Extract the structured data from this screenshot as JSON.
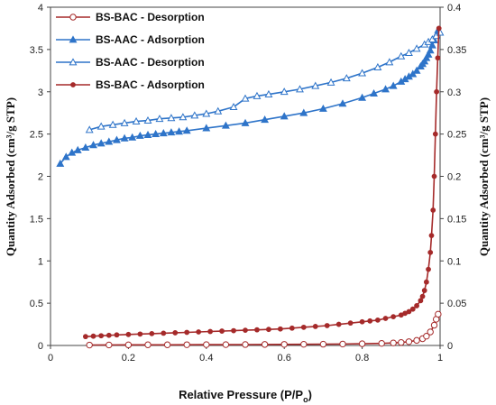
{
  "chart_data": {
    "type": "line",
    "xlabel": "Relative Pressure (P/P",
    "xlabel_sub": "o",
    "xlabel_end": ")",
    "ylabel_left": "Quantity Adsorbed (cm³/g STP)",
    "ylabel_right": "Quantity Adsorbed (cm³/g STP)",
    "xlim": [
      0,
      1
    ],
    "ylim_left": [
      0,
      4
    ],
    "ylim_right": [
      0,
      0.4
    ],
    "x_ticks": [
      "0",
      "0.2",
      "0.4",
      "0.6",
      "0.8",
      "1"
    ],
    "y_left_ticks": [
      "0",
      "0.5",
      "1",
      "1.5",
      "2",
      "2.5",
      "3",
      "3.5",
      "4"
    ],
    "y_right_ticks": [
      "0",
      "0.05",
      "0.1",
      "0.15",
      "0.2",
      "0.25",
      "0.3",
      "0.35",
      "0.4"
    ],
    "legend": [
      "BS-BAC - Desorption",
      "BS-AAC - Adsorption",
      "BS-AAC - Desorption",
      "BS-BAC - Adsorption"
    ],
    "colors": {
      "bac": "#a52a2a",
      "aac": "#2e74c9"
    },
    "series": [
      {
        "name": "BS-BAC - Desorption",
        "axis": "right",
        "color": "#a52a2a",
        "marker": "circle-open",
        "x": [
          0.1,
          0.15,
          0.2,
          0.25,
          0.3,
          0.35,
          0.4,
          0.45,
          0.5,
          0.55,
          0.6,
          0.65,
          0.7,
          0.75,
          0.8,
          0.85,
          0.88,
          0.9,
          0.92,
          0.94,
          0.955,
          0.965,
          0.975,
          0.985,
          0.99,
          0.995
        ],
        "y": [
          0.0005,
          0.0006,
          0.0007,
          0.0008,
          0.0008,
          0.0009,
          0.001,
          0.001,
          0.0011,
          0.0012,
          0.0013,
          0.0014,
          0.0015,
          0.0017,
          0.002,
          0.0025,
          0.003,
          0.0035,
          0.0045,
          0.006,
          0.008,
          0.011,
          0.016,
          0.024,
          0.031,
          0.037
        ]
      },
      {
        "name": "BS-AAC - Adsorption",
        "axis": "left",
        "color": "#2e74c9",
        "marker": "triangle-filled",
        "x": [
          0.025,
          0.04,
          0.055,
          0.07,
          0.09,
          0.11,
          0.13,
          0.15,
          0.17,
          0.19,
          0.21,
          0.23,
          0.25,
          0.27,
          0.29,
          0.31,
          0.33,
          0.35,
          0.4,
          0.45,
          0.5,
          0.55,
          0.6,
          0.65,
          0.7,
          0.75,
          0.8,
          0.83,
          0.86,
          0.88,
          0.9,
          0.91,
          0.92,
          0.93,
          0.94,
          0.95,
          0.955,
          0.96,
          0.965,
          0.97,
          0.975,
          0.98,
          0.985,
          0.99,
          0.995
        ],
        "y": [
          2.15,
          2.23,
          2.28,
          2.31,
          2.34,
          2.37,
          2.39,
          2.41,
          2.43,
          2.45,
          2.46,
          2.48,
          2.49,
          2.5,
          2.51,
          2.52,
          2.53,
          2.54,
          2.57,
          2.6,
          2.63,
          2.67,
          2.71,
          2.75,
          2.8,
          2.86,
          2.93,
          2.98,
          3.03,
          3.07,
          3.12,
          3.15,
          3.18,
          3.21,
          3.25,
          3.3,
          3.33,
          3.36,
          3.4,
          3.44,
          3.49,
          3.55,
          3.61,
          3.67,
          3.73
        ]
      },
      {
        "name": "BS-AAC - Desorption",
        "axis": "left",
        "color": "#2e74c9",
        "marker": "triangle-open",
        "x": [
          0.1,
          0.13,
          0.16,
          0.19,
          0.22,
          0.25,
          0.28,
          0.31,
          0.34,
          0.37,
          0.4,
          0.43,
          0.47,
          0.5,
          0.53,
          0.56,
          0.6,
          0.64,
          0.68,
          0.72,
          0.76,
          0.8,
          0.84,
          0.87,
          0.9,
          0.92,
          0.94,
          0.96,
          0.97,
          0.98,
          0.99,
          1.0
        ],
        "y": [
          2.55,
          2.59,
          2.61,
          2.63,
          2.65,
          2.66,
          2.68,
          2.69,
          2.7,
          2.72,
          2.74,
          2.77,
          2.82,
          2.92,
          2.95,
          2.97,
          3.0,
          3.03,
          3.07,
          3.11,
          3.16,
          3.22,
          3.29,
          3.35,
          3.42,
          3.46,
          3.51,
          3.56,
          3.59,
          3.62,
          3.66,
          3.7
        ]
      },
      {
        "name": "BS-BAC - Adsorption",
        "axis": "right",
        "color": "#a52a2a",
        "marker": "circle-filled",
        "x": [
          0.09,
          0.11,
          0.13,
          0.15,
          0.17,
          0.2,
          0.23,
          0.26,
          0.29,
          0.32,
          0.35,
          0.38,
          0.41,
          0.44,
          0.47,
          0.5,
          0.53,
          0.56,
          0.59,
          0.62,
          0.65,
          0.68,
          0.71,
          0.74,
          0.77,
          0.8,
          0.82,
          0.84,
          0.86,
          0.88,
          0.9,
          0.91,
          0.92,
          0.93,
          0.94,
          0.95,
          0.955,
          0.96,
          0.965,
          0.97,
          0.975,
          0.978,
          0.982,
          0.985,
          0.988,
          0.991,
          0.994,
          0.997
        ],
        "y": [
          0.0105,
          0.011,
          0.0115,
          0.012,
          0.0125,
          0.013,
          0.0135,
          0.014,
          0.0145,
          0.015,
          0.0155,
          0.016,
          0.0165,
          0.017,
          0.0175,
          0.018,
          0.0185,
          0.019,
          0.0195,
          0.0205,
          0.0215,
          0.0225,
          0.0235,
          0.025,
          0.0265,
          0.028,
          0.029,
          0.03,
          0.032,
          0.034,
          0.036,
          0.038,
          0.04,
          0.043,
          0.047,
          0.053,
          0.058,
          0.065,
          0.075,
          0.09,
          0.11,
          0.13,
          0.16,
          0.2,
          0.25,
          0.3,
          0.34,
          0.375
        ]
      }
    ]
  }
}
